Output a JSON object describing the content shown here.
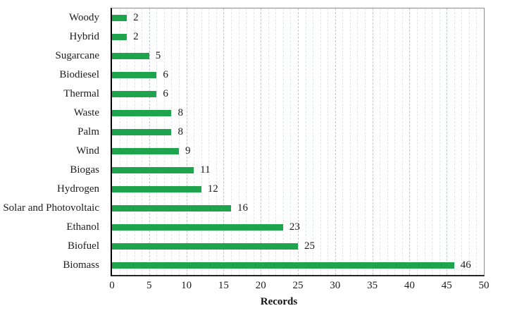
{
  "chart_data": {
    "type": "bar",
    "orientation": "horizontal",
    "categories": [
      "Woody",
      "Hybrid",
      "Sugarcane",
      "Biodiesel",
      "Thermal",
      "Waste",
      "Palm",
      "Wind",
      "Biogas",
      "Hydrogen",
      "Solar and Photovoltaic",
      "Ethanol",
      "Biofuel",
      "Biomass"
    ],
    "values": [
      2,
      2,
      5,
      6,
      6,
      8,
      8,
      9,
      11,
      12,
      16,
      23,
      25,
      46
    ],
    "data_labels": [
      2,
      2,
      5,
      6,
      6,
      8,
      8,
      9,
      11,
      12,
      16,
      23,
      25,
      46
    ],
    "title": "",
    "xlabel": "Records",
    "ylabel": "",
    "xlim": [
      0,
      50
    ],
    "x_ticks": [
      0,
      5,
      10,
      15,
      20,
      25,
      30,
      35,
      40,
      45,
      50
    ],
    "grid": true,
    "minor_grid_step": 1,
    "major_grid_step": 5,
    "legend": false,
    "colors": {
      "bar": "#1ea44d",
      "text": "#1c1c1c",
      "minor_grid": "#e4e7ea",
      "major_grid": "#c3c8ce",
      "axis": "#000000",
      "plot_border": "#8c8c8c",
      "background": "#ffffff"
    }
  }
}
